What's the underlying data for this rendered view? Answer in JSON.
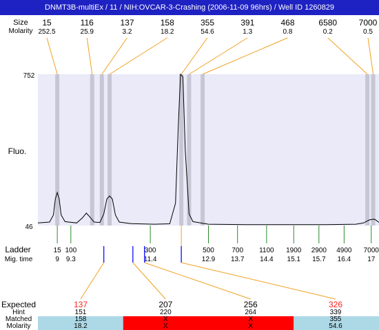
{
  "title": "DNMT3B-multiEx / 11  / NIH:OVCAR-3-Crashing (2006-11-09 96hrs) / Well ID 1260829",
  "row_labels": {
    "peak_size": "Size",
    "molarity": "Molarity",
    "fluo": "Fluo.",
    "ladder": "Ladder",
    "mig_time": "Mig. time",
    "expected": "Expected",
    "hint": "Hint",
    "matched": "Matched",
    "molarity_bottom": "Molarity"
  },
  "colors": {
    "title_bg": "#1f22c2",
    "plot_bg": "#eaeaf8",
    "peak_band": "#c6c6d4",
    "trace": "#000000",
    "connector": "#f0a020",
    "ladder_tick": "#2a8a2a",
    "mig_tick": "#1a1aff",
    "expected_miss": "#ff2020",
    "matched_ok_bg": "#add8e6",
    "matched_miss_bg": "#ff0000"
  },
  "chart_data": {
    "type": "line",
    "description_axis": "Fluo.",
    "ylim": [
      46,
      752
    ],
    "y_ticks": [
      "752",
      "46"
    ],
    "mig_time_range": [
      8.6,
      17.4
    ],
    "peaks": [
      {
        "size": "15",
        "molarity": "252.5",
        "mig_time": 9.1
      },
      {
        "size": "116",
        "molarity": "25.9",
        "mig_time": 10.0
      },
      {
        "size": "137",
        "molarity": "3.2",
        "mig_time": 10.25
      },
      {
        "size": "158",
        "molarity": "18.2",
        "mig_time": 10.45
      },
      {
        "size": "355",
        "molarity": "54.6",
        "mig_time": 12.3
      },
      {
        "size": "391",
        "molarity": "1.3",
        "mig_time": 12.5
      },
      {
        "size": "468",
        "molarity": "0.8",
        "mig_time": 12.85
      },
      {
        "size": "6580",
        "molarity": "0.2",
        "mig_time": 17.1
      },
      {
        "size": "7000",
        "molarity": "0.5",
        "mig_time": 17.25
      }
    ],
    "trace": [
      [
        8.6,
        58
      ],
      [
        8.9,
        62
      ],
      [
        9.0,
        95
      ],
      [
        9.05,
        170
      ],
      [
        9.1,
        200
      ],
      [
        9.15,
        170
      ],
      [
        9.2,
        95
      ],
      [
        9.3,
        64
      ],
      [
        9.6,
        58
      ],
      [
        9.75,
        82
      ],
      [
        9.85,
        104
      ],
      [
        9.95,
        84
      ],
      [
        10.05,
        62
      ],
      [
        10.2,
        60
      ],
      [
        10.3,
        100
      ],
      [
        10.38,
        170
      ],
      [
        10.45,
        184
      ],
      [
        10.52,
        170
      ],
      [
        10.6,
        95
      ],
      [
        10.7,
        62
      ],
      [
        11.0,
        55
      ],
      [
        11.6,
        52
      ],
      [
        12.0,
        54
      ],
      [
        12.15,
        150
      ],
      [
        12.22,
        500
      ],
      [
        12.28,
        752
      ],
      [
        12.34,
        740
      ],
      [
        12.4,
        400
      ],
      [
        12.5,
        100
      ],
      [
        12.6,
        64
      ],
      [
        13.0,
        52
      ],
      [
        14.0,
        50
      ],
      [
        15.0,
        50
      ],
      [
        16.0,
        50
      ],
      [
        16.8,
        52
      ],
      [
        17.0,
        58
      ],
      [
        17.15,
        72
      ],
      [
        17.28,
        76
      ],
      [
        17.36,
        66
      ],
      [
        17.4,
        60
      ]
    ],
    "ladder": [
      {
        "size": "15",
        "mig_time": "9",
        "t": 9.1
      },
      {
        "size": "100",
        "mig_time": "9.3",
        "t": 9.45
      },
      {
        "size": "300",
        "mig_time": "11.4",
        "t": 11.5
      },
      {
        "size": "500",
        "mig_time": "12.9",
        "t": 13.0
      },
      {
        "size": "700",
        "mig_time": "13.7",
        "t": 13.75
      },
      {
        "size": "1100",
        "mig_time": "14.4",
        "t": 14.5
      },
      {
        "size": "1900",
        "mig_time": "15.1",
        "t": 15.2
      },
      {
        "size": "2900",
        "mig_time": "15.7",
        "t": 15.85
      },
      {
        "size": "4900",
        "mig_time": "16.4",
        "t": 16.5
      },
      {
        "size": "7000",
        "mig_time": "17",
        "t": 17.2
      }
    ],
    "expected_markers": [
      10.3,
      11.05,
      11.35,
      12.3
    ],
    "expected": [
      {
        "expected": "137",
        "hint": "151",
        "matched": "158",
        "molarity": "18.2",
        "status": "ok"
      },
      {
        "expected": "207",
        "hint": "220",
        "matched": "X",
        "molarity": "X",
        "status": "miss"
      },
      {
        "expected": "256",
        "hint": "264",
        "matched": "X",
        "molarity": "X",
        "status": "miss"
      },
      {
        "expected": "326",
        "hint": "339",
        "matched": "355",
        "molarity": "54.6",
        "status": "ok"
      }
    ]
  }
}
